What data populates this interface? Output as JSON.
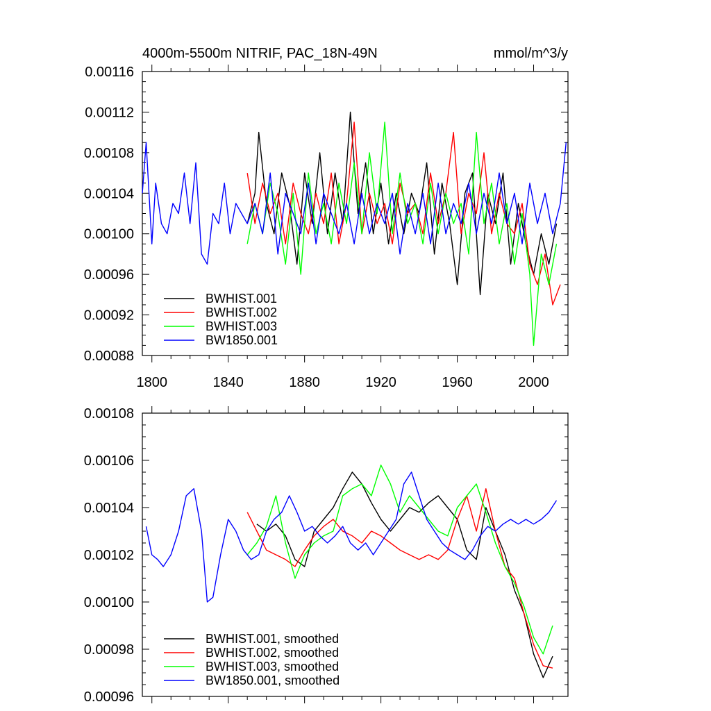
{
  "chart_data": [
    {
      "type": "line",
      "title": "4000m-5500m NITRIF, PAC_18N-49N",
      "units": "mmol/m^3/y",
      "xlim": [
        1795,
        2018
      ],
      "ylim": [
        0.00088,
        0.00116
      ],
      "x_ticks": [
        1800,
        1840,
        1880,
        1920,
        1960,
        2000
      ],
      "x_tick_labels": [
        "1800",
        "1840",
        "1880",
        "1920",
        "1960",
        "2000"
      ],
      "y_ticks": [
        0.00088,
        0.00092,
        0.00096,
        0.001,
        0.00104,
        0.00108,
        0.00112,
        0.00116
      ],
      "y_tick_labels": [
        "0.00088",
        "0.00092",
        "0.00096",
        "0.00100",
        "0.00104",
        "0.00108",
        "0.00112",
        "0.00116"
      ],
      "legend_position": "bottom-left",
      "grid": false,
      "series": [
        {
          "name": "BWHIST.001",
          "color": "#000000",
          "x": [
            1850,
            1854,
            1856,
            1860,
            1864,
            1868,
            1872,
            1876,
            1880,
            1884,
            1888,
            1892,
            1896,
            1900,
            1904,
            1908,
            1912,
            1916,
            1920,
            1924,
            1928,
            1932,
            1936,
            1940,
            1944,
            1948,
            1952,
            1956,
            1960,
            1964,
            1968,
            1972,
            1976,
            1980,
            1984,
            1988,
            1992,
            1996,
            2000,
            2004,
            2008,
            2012
          ],
          "y": [
            0.00101,
            0.00104,
            0.0011,
            0.00103,
            0.001,
            0.00106,
            0.00103,
            0.00097,
            0.00106,
            0.00101,
            0.00108,
            0.001,
            0.00106,
            0.00101,
            0.00112,
            0.00102,
            0.00107,
            0.001,
            0.00105,
            0.00099,
            0.00104,
            0.001,
            0.00104,
            0.00102,
            0.00107,
            0.00098,
            0.00105,
            0.00101,
            0.00095,
            0.00104,
            0.00106,
            0.00094,
            0.00104,
            0.00101,
            0.00106,
            0.00097,
            0.00103,
            0.00099,
            0.00096,
            0.001,
            0.00097,
            0.00101
          ]
        },
        {
          "name": "BWHIST.002",
          "color": "#ff0000",
          "x": [
            1850,
            1854,
            1858,
            1862,
            1866,
            1870,
            1874,
            1878,
            1882,
            1886,
            1890,
            1894,
            1898,
            1902,
            1906,
            1910,
            1914,
            1918,
            1922,
            1926,
            1930,
            1934,
            1938,
            1942,
            1946,
            1950,
            1954,
            1958,
            1962,
            1966,
            1970,
            1974,
            1978,
            1982,
            1986,
            1990,
            1994,
            1998,
            2002,
            2006,
            2010,
            2014
          ],
          "y": [
            0.00106,
            0.00101,
            0.00105,
            0.00102,
            0.00104,
            0.00099,
            0.00105,
            0.00102,
            0.001,
            0.00104,
            0.00101,
            0.00106,
            0.00099,
            0.00103,
            0.00111,
            0.001,
            0.00104,
            0.00101,
            0.00103,
            0.00099,
            0.00105,
            0.00102,
            0.00103,
            0.001,
            0.00106,
            0.00101,
            0.00104,
            0.0011,
            0.001,
            0.00104,
            0.00102,
            0.00108,
            0.001,
            0.00104,
            0.00101,
            0.001,
            0.00103,
            0.00097,
            0.00095,
            0.00098,
            0.00093,
            0.00095
          ]
        },
        {
          "name": "BWHIST.003",
          "color": "#00ff00",
          "x": [
            1850,
            1854,
            1858,
            1862,
            1866,
            1870,
            1874,
            1878,
            1882,
            1886,
            1890,
            1894,
            1898,
            1902,
            1906,
            1910,
            1914,
            1918,
            1922,
            1926,
            1930,
            1934,
            1938,
            1942,
            1946,
            1950,
            1954,
            1958,
            1962,
            1966,
            1970,
            1974,
            1978,
            1982,
            1986,
            1990,
            1994,
            1998,
            2000,
            2004,
            2008,
            2012
          ],
          "y": [
            0.00099,
            0.00103,
            0.001,
            0.00105,
            0.00102,
            0.00097,
            0.00104,
            0.00096,
            0.00106,
            0.001,
            0.00103,
            0.00099,
            0.00105,
            0.00101,
            0.00107,
            0.001,
            0.00108,
            0.00102,
            0.00111,
            0.001,
            0.00106,
            0.00101,
            0.00103,
            0.00099,
            0.00105,
            0.001,
            0.00104,
            0.00101,
            0.00103,
            0.00098,
            0.0011,
            0.00101,
            0.00105,
            0.00099,
            0.00103,
            0.00097,
            0.00102,
            0.00096,
            0.00089,
            0.00098,
            0.00095,
            0.00099
          ]
        },
        {
          "name": "BW1850.001",
          "color": "#0000ff",
          "x": [
            1795,
            1797,
            1800,
            1802,
            1805,
            1808,
            1811,
            1814,
            1817,
            1820,
            1823,
            1826,
            1829,
            1832,
            1835,
            1838,
            1841,
            1844,
            1847,
            1850,
            1854,
            1858,
            1862,
            1866,
            1870,
            1874,
            1878,
            1882,
            1886,
            1890,
            1894,
            1898,
            1902,
            1906,
            1910,
            1914,
            1918,
            1922,
            1926,
            1930,
            1934,
            1938,
            1942,
            1946,
            1950,
            1954,
            1958,
            1962,
            1966,
            1970,
            1974,
            1978,
            1982,
            1986,
            1990,
            1994,
            1998,
            2002,
            2006,
            2010,
            2014,
            2017
          ],
          "y": [
            0.00104,
            0.00109,
            0.00099,
            0.00105,
            0.00101,
            0.001,
            0.00103,
            0.00102,
            0.00106,
            0.00101,
            0.00107,
            0.00098,
            0.00097,
            0.00102,
            0.00101,
            0.00105,
            0.001,
            0.00103,
            0.00102,
            0.00101,
            0.00103,
            0.001,
            0.00106,
            0.00098,
            0.00104,
            0.00102,
            0.001,
            0.00105,
            0.00099,
            0.00104,
            0.00102,
            0.001,
            0.00103,
            0.00099,
            0.00104,
            0.001,
            0.00103,
            0.00101,
            0.00104,
            0.00098,
            0.00103,
            0.001,
            0.00104,
            0.00099,
            0.00105,
            0.001,
            0.00103,
            0.00101,
            0.00105,
            0.001,
            0.00104,
            0.00101,
            0.00106,
            0.00101,
            0.00104,
            0.00099,
            0.00105,
            0.00101,
            0.00104,
            0.001,
            0.00103,
            0.00109
          ]
        }
      ]
    },
    {
      "type": "line",
      "title": "",
      "units": "",
      "xlim": [
        1795,
        2018
      ],
      "ylim": [
        0.00096,
        0.00108
      ],
      "x_ticks": [
        1800,
        1840,
        1880,
        1920,
        1960,
        2000
      ],
      "x_tick_labels": [
        "",
        "",
        "",
        "",
        "",
        ""
      ],
      "y_ticks": [
        0.00096,
        0.00098,
        0.001,
        0.00102,
        0.00104,
        0.00106,
        0.00108
      ],
      "y_tick_labels": [
        "0.00096",
        "0.00098",
        "0.00100",
        "0.00102",
        "0.00104",
        "0.00106",
        "0.00108"
      ],
      "legend_position": "bottom-left",
      "grid": false,
      "series": [
        {
          "name": "BWHIST.001, smoothed",
          "color": "#000000",
          "x": [
            1855,
            1860,
            1865,
            1870,
            1875,
            1880,
            1885,
            1890,
            1895,
            1900,
            1905,
            1910,
            1915,
            1920,
            1925,
            1930,
            1935,
            1940,
            1945,
            1950,
            1955,
            1960,
            1965,
            1970,
            1975,
            1980,
            1985,
            1990,
            1995,
            2000,
            2005,
            2010
          ],
          "y": [
            0.001033,
            0.00103,
            0.001033,
            0.001028,
            0.001018,
            0.001015,
            0.00103,
            0.001035,
            0.00104,
            0.001048,
            0.001055,
            0.00105,
            0.001042,
            0.001035,
            0.00103,
            0.001035,
            0.00104,
            0.001038,
            0.001042,
            0.001045,
            0.00104,
            0.001035,
            0.001022,
            0.001018,
            0.00104,
            0.00103,
            0.00102,
            0.001005,
            0.000995,
            0.000978,
            0.000968,
            0.000977
          ]
        },
        {
          "name": "BWHIST.002, smoothed",
          "color": "#ff0000",
          "x": [
            1850,
            1855,
            1860,
            1865,
            1870,
            1875,
            1880,
            1885,
            1890,
            1895,
            1900,
            1905,
            1910,
            1915,
            1920,
            1925,
            1930,
            1935,
            1940,
            1945,
            1950,
            1955,
            1960,
            1965,
            1970,
            1975,
            1980,
            1985,
            1990,
            1995,
            2000,
            2005,
            2010
          ],
          "y": [
            0.001038,
            0.00103,
            0.001022,
            0.00102,
            0.001018,
            0.001015,
            0.001022,
            0.001028,
            0.001032,
            0.001035,
            0.00103,
            0.001028,
            0.001025,
            0.00103,
            0.001028,
            0.001025,
            0.001022,
            0.00102,
            0.001018,
            0.00102,
            0.001018,
            0.001022,
            0.001035,
            0.001045,
            0.00103,
            0.001048,
            0.00103,
            0.001015,
            0.00101,
            0.000995,
            0.000982,
            0.000973,
            0.000972
          ]
        },
        {
          "name": "BWHIST.003, smoothed",
          "color": "#00ff00",
          "x": [
            1850,
            1855,
            1860,
            1865,
            1870,
            1875,
            1880,
            1885,
            1890,
            1895,
            1900,
            1905,
            1910,
            1915,
            1920,
            1925,
            1930,
            1935,
            1940,
            1945,
            1950,
            1955,
            1960,
            1965,
            1970,
            1975,
            1980,
            1985,
            1990,
            1995,
            2000,
            2005,
            2010
          ],
          "y": [
            0.00102,
            0.001025,
            0.001032,
            0.001045,
            0.001025,
            0.00101,
            0.00102,
            0.001025,
            0.001028,
            0.00103,
            0.001045,
            0.001048,
            0.00105,
            0.001045,
            0.001058,
            0.00105,
            0.001038,
            0.001045,
            0.00104,
            0.001035,
            0.00103,
            0.001028,
            0.00104,
            0.001045,
            0.00105,
            0.001038,
            0.001025,
            0.001015,
            0.001008,
            0.000998,
            0.000985,
            0.000978,
            0.00099
          ]
        },
        {
          "name": "BW1850.001, smoothed",
          "color": "#0000ff",
          "x": [
            1797,
            1800,
            1803,
            1806,
            1810,
            1814,
            1818,
            1822,
            1826,
            1829,
            1832,
            1836,
            1840,
            1844,
            1848,
            1852,
            1856,
            1860,
            1864,
            1868,
            1872,
            1876,
            1880,
            1884,
            1888,
            1892,
            1896,
            1900,
            1904,
            1908,
            1912,
            1916,
            1920,
            1924,
            1928,
            1932,
            1936,
            1940,
            1944,
            1948,
            1952,
            1956,
            1960,
            1964,
            1968,
            1972,
            1976,
            1980,
            1984,
            1988,
            1992,
            1996,
            2000,
            2004,
            2008,
            2012
          ],
          "y": [
            0.001032,
            0.00102,
            0.001018,
            0.001015,
            0.00102,
            0.00103,
            0.001045,
            0.001048,
            0.00103,
            0.001,
            0.001002,
            0.00102,
            0.001035,
            0.00103,
            0.001022,
            0.001018,
            0.00102,
            0.00103,
            0.001035,
            0.001038,
            0.001045,
            0.001038,
            0.00103,
            0.001032,
            0.001028,
            0.001025,
            0.001028,
            0.001032,
            0.001025,
            0.001022,
            0.001025,
            0.00102,
            0.001025,
            0.00103,
            0.001035,
            0.00105,
            0.001055,
            0.001045,
            0.001035,
            0.00103,
            0.001025,
            0.001022,
            0.00102,
            0.001018,
            0.001022,
            0.001028,
            0.001032,
            0.00103,
            0.001033,
            0.001035,
            0.001033,
            0.001035,
            0.001033,
            0.001035,
            0.001038,
            0.001043
          ]
        }
      ]
    }
  ]
}
